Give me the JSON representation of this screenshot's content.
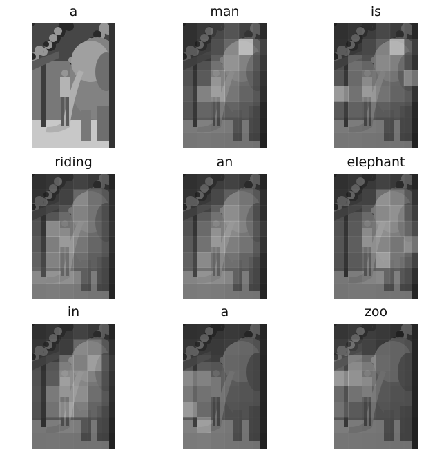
{
  "figure": {
    "caption_words": [
      "a",
      "man",
      "is",
      "riding",
      "an",
      "elephant",
      "in",
      "a",
      "zoo"
    ],
    "panels": [
      {
        "word": "a",
        "attention": "full",
        "attention_grid": null
      },
      {
        "word": "man",
        "attention": "grid",
        "attention_grid": [
          [
            0.05,
            0.1,
            0.18,
            0.25,
            0.15,
            0.08
          ],
          [
            0.05,
            0.12,
            0.22,
            0.35,
            0.7,
            0.2
          ],
          [
            0.08,
            0.1,
            0.3,
            0.42,
            0.3,
            0.15
          ],
          [
            0.1,
            0.15,
            0.38,
            0.32,
            0.22,
            0.12
          ],
          [
            0.15,
            0.4,
            0.45,
            0.3,
            0.18,
            0.1
          ],
          [
            0.12,
            0.22,
            0.2,
            0.18,
            0.12,
            0.06
          ],
          [
            0.1,
            0.15,
            0.12,
            0.1,
            0.08,
            0.05
          ],
          [
            0.06,
            0.08,
            0.06,
            0.05,
            0.04,
            0.03
          ]
        ]
      },
      {
        "word": "is",
        "attention": "grid",
        "attention_grid": [
          [
            0.05,
            0.08,
            0.12,
            0.18,
            0.12,
            0.06
          ],
          [
            0.06,
            0.1,
            0.18,
            0.3,
            0.65,
            0.18
          ],
          [
            0.08,
            0.28,
            0.22,
            0.35,
            0.28,
            0.12
          ],
          [
            0.12,
            0.25,
            0.3,
            0.25,
            0.2,
            0.45
          ],
          [
            0.55,
            0.3,
            0.42,
            0.28,
            0.18,
            0.12
          ],
          [
            0.15,
            0.2,
            0.18,
            0.15,
            0.1,
            0.06
          ],
          [
            0.1,
            0.12,
            0.1,
            0.08,
            0.06,
            0.05
          ],
          [
            0.06,
            0.07,
            0.05,
            0.04,
            0.04,
            0.03
          ]
        ]
      },
      {
        "word": "riding",
        "attention": "grid",
        "attention_grid": [
          [
            0.05,
            0.08,
            0.12,
            0.15,
            0.1,
            0.05
          ],
          [
            0.06,
            0.1,
            0.15,
            0.35,
            0.18,
            0.1
          ],
          [
            0.08,
            0.12,
            0.25,
            0.3,
            0.2,
            0.1
          ],
          [
            0.1,
            0.45,
            0.3,
            0.35,
            0.22,
            0.12
          ],
          [
            0.15,
            0.38,
            0.42,
            0.3,
            0.2,
            0.1
          ],
          [
            0.2,
            0.4,
            0.35,
            0.25,
            0.15,
            0.08
          ],
          [
            0.22,
            0.3,
            0.28,
            0.18,
            0.12,
            0.06
          ],
          [
            0.1,
            0.12,
            0.1,
            0.08,
            0.05,
            0.04
          ]
        ]
      },
      {
        "word": "an",
        "attention": "grid",
        "attention_grid": [
          [
            0.05,
            0.08,
            0.12,
            0.15,
            0.1,
            0.05
          ],
          [
            0.06,
            0.1,
            0.18,
            0.3,
            0.2,
            0.1
          ],
          [
            0.08,
            0.15,
            0.3,
            0.38,
            0.25,
            0.1
          ],
          [
            0.1,
            0.25,
            0.35,
            0.42,
            0.3,
            0.15
          ],
          [
            0.15,
            0.3,
            0.4,
            0.35,
            0.28,
            0.12
          ],
          [
            0.2,
            0.45,
            0.3,
            0.28,
            0.18,
            0.08
          ],
          [
            0.18,
            0.3,
            0.25,
            0.2,
            0.12,
            0.06
          ],
          [
            0.1,
            0.12,
            0.1,
            0.08,
            0.05,
            0.04
          ]
        ]
      },
      {
        "word": "elephant",
        "attention": "grid",
        "attention_grid": [
          [
            0.05,
            0.08,
            0.1,
            0.15,
            0.1,
            0.05
          ],
          [
            0.06,
            0.1,
            0.15,
            0.4,
            0.3,
            0.12
          ],
          [
            0.08,
            0.12,
            0.25,
            0.35,
            0.4,
            0.18
          ],
          [
            0.1,
            0.15,
            0.3,
            0.45,
            0.35,
            0.25
          ],
          [
            0.12,
            0.18,
            0.35,
            0.4,
            0.3,
            0.45
          ],
          [
            0.1,
            0.15,
            0.25,
            0.55,
            0.3,
            0.2
          ],
          [
            0.08,
            0.12,
            0.18,
            0.22,
            0.15,
            0.1
          ],
          [
            0.05,
            0.08,
            0.08,
            0.06,
            0.05,
            0.04
          ]
        ]
      },
      {
        "word": "in",
        "attention": "grid",
        "attention_grid": [
          [
            0.05,
            0.08,
            0.1,
            0.15,
            0.1,
            0.05
          ],
          [
            0.08,
            0.1,
            0.12,
            0.35,
            0.3,
            0.1
          ],
          [
            0.08,
            0.12,
            0.38,
            0.28,
            0.5,
            0.15
          ],
          [
            0.1,
            0.15,
            0.45,
            0.4,
            0.3,
            0.12
          ],
          [
            0.12,
            0.35,
            0.38,
            0.45,
            0.25,
            0.1
          ],
          [
            0.1,
            0.3,
            0.5,
            0.35,
            0.18,
            0.08
          ],
          [
            0.08,
            0.12,
            0.15,
            0.12,
            0.08,
            0.05
          ],
          [
            0.05,
            0.06,
            0.05,
            0.04,
            0.04,
            0.03
          ]
        ]
      },
      {
        "word": "a",
        "attention": "grid",
        "attention_grid": [
          [
            0.05,
            0.06,
            0.08,
            0.1,
            0.08,
            0.05
          ],
          [
            0.08,
            0.1,
            0.1,
            0.12,
            0.1,
            0.06
          ],
          [
            0.1,
            0.15,
            0.12,
            0.1,
            0.08,
            0.05
          ],
          [
            0.45,
            0.4,
            0.15,
            0.12,
            0.08,
            0.05
          ],
          [
            0.35,
            0.3,
            0.15,
            0.1,
            0.08,
            0.05
          ],
          [
            0.55,
            0.25,
            0.12,
            0.08,
            0.06,
            0.04
          ],
          [
            0.15,
            0.4,
            0.1,
            0.08,
            0.05,
            0.04
          ],
          [
            0.1,
            0.12,
            0.08,
            0.06,
            0.04,
            0.03
          ]
        ]
      },
      {
        "word": "zoo",
        "attention": "grid",
        "attention_grid": [
          [
            0.08,
            0.1,
            0.12,
            0.1,
            0.06,
            0.05
          ],
          [
            0.12,
            0.2,
            0.15,
            0.1,
            0.08,
            0.05
          ],
          [
            0.2,
            0.45,
            0.35,
            0.12,
            0.08,
            0.05
          ],
          [
            0.55,
            0.5,
            0.3,
            0.1,
            0.08,
            0.05
          ],
          [
            0.25,
            0.3,
            0.2,
            0.1,
            0.06,
            0.04
          ],
          [
            0.3,
            0.15,
            0.12,
            0.08,
            0.05,
            0.04
          ],
          [
            0.12,
            0.1,
            0.08,
            0.06,
            0.04,
            0.03
          ],
          [
            0.06,
            0.06,
            0.05,
            0.04,
            0.03,
            0.03
          ]
        ]
      }
    ]
  }
}
